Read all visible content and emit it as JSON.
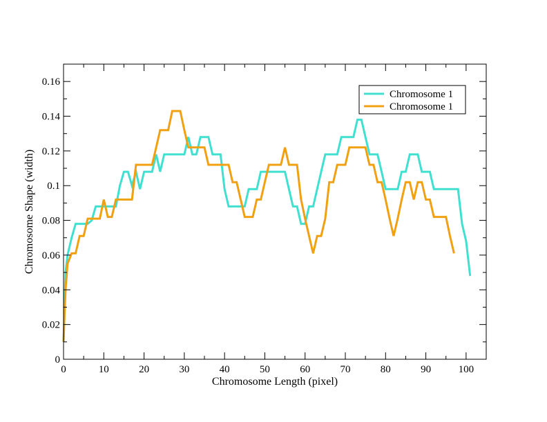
{
  "chart_data": {
    "type": "line",
    "title": "",
    "xlabel": "Chromosome Length (pixel)",
    "ylabel": "Chromosome Shape (width)",
    "xlim": [
      0,
      105
    ],
    "ylim": [
      0,
      0.17
    ],
    "x_ticks": [
      0,
      10,
      20,
      30,
      40,
      50,
      60,
      70,
      80,
      90,
      100
    ],
    "x_tick_labels": [
      "0",
      "10",
      "20",
      "30",
      "40",
      "50",
      "60",
      "70",
      "80",
      "90",
      "100"
    ],
    "y_ticks": [
      0,
      0.02,
      0.04,
      0.06,
      0.08,
      0.1,
      0.12,
      0.14,
      0.16
    ],
    "y_tick_labels": [
      "0",
      "0.02",
      "0.04",
      "0.06",
      "0.08",
      "0.1",
      "0.12",
      "0.14",
      "0.16"
    ],
    "grid": false,
    "legend_position": "top-right",
    "series": [
      {
        "name": "Chromosome 1",
        "color": "#40e0d0",
        "points": [
          [
            0,
            0.01
          ],
          [
            0.5,
            0.05
          ],
          [
            1,
            0.06
          ],
          [
            2,
            0.07
          ],
          [
            3,
            0.078
          ],
          [
            4,
            0.078
          ],
          [
            5,
            0.078
          ],
          [
            6,
            0.078
          ],
          [
            7,
            0.08
          ],
          [
            8,
            0.088
          ],
          [
            9,
            0.088
          ],
          [
            10,
            0.088
          ],
          [
            11,
            0.088
          ],
          [
            12,
            0.088
          ],
          [
            13,
            0.088
          ],
          [
            14,
            0.1
          ],
          [
            15,
            0.108
          ],
          [
            16,
            0.108
          ],
          [
            17,
            0.1
          ],
          [
            18,
            0.108
          ],
          [
            19,
            0.098
          ],
          [
            20,
            0.108
          ],
          [
            21,
            0.108
          ],
          [
            22,
            0.108
          ],
          [
            23,
            0.118
          ],
          [
            24,
            0.108
          ],
          [
            25,
            0.118
          ],
          [
            26,
            0.118
          ],
          [
            27,
            0.118
          ],
          [
            28,
            0.118
          ],
          [
            29,
            0.118
          ],
          [
            30,
            0.118
          ],
          [
            31,
            0.128
          ],
          [
            32,
            0.118
          ],
          [
            33,
            0.118
          ],
          [
            34,
            0.128
          ],
          [
            35,
            0.128
          ],
          [
            36,
            0.128
          ],
          [
            37,
            0.118
          ],
          [
            38,
            0.118
          ],
          [
            39,
            0.118
          ],
          [
            40,
            0.098
          ],
          [
            41,
            0.088
          ],
          [
            42,
            0.088
          ],
          [
            43,
            0.088
          ],
          [
            44,
            0.088
          ],
          [
            45,
            0.088
          ],
          [
            46,
            0.098
          ],
          [
            47,
            0.098
          ],
          [
            48,
            0.098
          ],
          [
            49,
            0.108
          ],
          [
            50,
            0.108
          ],
          [
            51,
            0.108
          ],
          [
            52,
            0.108
          ],
          [
            53,
            0.108
          ],
          [
            54,
            0.108
          ],
          [
            55,
            0.108
          ],
          [
            56,
            0.098
          ],
          [
            57,
            0.088
          ],
          [
            58,
            0.088
          ],
          [
            59,
            0.078
          ],
          [
            60,
            0.078
          ],
          [
            61,
            0.088
          ],
          [
            62,
            0.088
          ],
          [
            63,
            0.098
          ],
          [
            64,
            0.108
          ],
          [
            65,
            0.118
          ],
          [
            66,
            0.118
          ],
          [
            67,
            0.118
          ],
          [
            68,
            0.118
          ],
          [
            69,
            0.128
          ],
          [
            70,
            0.128
          ],
          [
            71,
            0.128
          ],
          [
            72,
            0.128
          ],
          [
            73,
            0.138
          ],
          [
            74,
            0.138
          ],
          [
            75,
            0.128
          ],
          [
            76,
            0.118
          ],
          [
            77,
            0.118
          ],
          [
            78,
            0.118
          ],
          [
            79,
            0.108
          ],
          [
            80,
            0.098
          ],
          [
            81,
            0.098
          ],
          [
            82,
            0.098
          ],
          [
            83,
            0.098
          ],
          [
            84,
            0.108
          ],
          [
            85,
            0.108
          ],
          [
            86,
            0.118
          ],
          [
            87,
            0.118
          ],
          [
            88,
            0.118
          ],
          [
            89,
            0.108
          ],
          [
            90,
            0.108
          ],
          [
            91,
            0.108
          ],
          [
            92,
            0.098
          ],
          [
            93,
            0.098
          ],
          [
            94,
            0.098
          ],
          [
            95,
            0.098
          ],
          [
            96,
            0.098
          ],
          [
            97,
            0.098
          ],
          [
            98,
            0.098
          ],
          [
            99,
            0.078
          ],
          [
            100,
            0.068
          ],
          [
            101,
            0.048
          ]
        ]
      },
      {
        "name": "Chromosome 1",
        "color": "#f0a010",
        "points": [
          [
            0,
            0.01
          ],
          [
            0.5,
            0.04
          ],
          [
            1,
            0.055
          ],
          [
            2,
            0.061
          ],
          [
            3,
            0.061
          ],
          [
            4,
            0.071
          ],
          [
            5,
            0.071
          ],
          [
            6,
            0.081
          ],
          [
            7,
            0.081
          ],
          [
            8,
            0.081
          ],
          [
            9,
            0.081
          ],
          [
            10,
            0.092
          ],
          [
            11,
            0.082
          ],
          [
            12,
            0.082
          ],
          [
            13,
            0.092
          ],
          [
            14,
            0.092
          ],
          [
            15,
            0.092
          ],
          [
            16,
            0.092
          ],
          [
            17,
            0.092
          ],
          [
            18,
            0.112
          ],
          [
            19,
            0.112
          ],
          [
            20,
            0.112
          ],
          [
            21,
            0.112
          ],
          [
            22,
            0.112
          ],
          [
            23,
            0.122
          ],
          [
            24,
            0.132
          ],
          [
            25,
            0.132
          ],
          [
            26,
            0.132
          ],
          [
            27,
            0.143
          ],
          [
            28,
            0.143
          ],
          [
            29,
            0.143
          ],
          [
            30,
            0.132
          ],
          [
            31,
            0.122
          ],
          [
            32,
            0.122
          ],
          [
            33,
            0.122
          ],
          [
            34,
            0.122
          ],
          [
            35,
            0.122
          ],
          [
            36,
            0.112
          ],
          [
            37,
            0.112
          ],
          [
            38,
            0.112
          ],
          [
            39,
            0.112
          ],
          [
            40,
            0.112
          ],
          [
            41,
            0.112
          ],
          [
            42,
            0.102
          ],
          [
            43,
            0.102
          ],
          [
            44,
            0.092
          ],
          [
            45,
            0.082
          ],
          [
            46,
            0.082
          ],
          [
            47,
            0.082
          ],
          [
            48,
            0.092
          ],
          [
            49,
            0.092
          ],
          [
            50,
            0.102
          ],
          [
            51,
            0.112
          ],
          [
            52,
            0.112
          ],
          [
            53,
            0.112
          ],
          [
            54,
            0.112
          ],
          [
            55,
            0.122
          ],
          [
            56,
            0.112
          ],
          [
            57,
            0.112
          ],
          [
            58,
            0.112
          ],
          [
            59,
            0.092
          ],
          [
            60,
            0.081
          ],
          [
            61,
            0.071
          ],
          [
            62,
            0.061
          ],
          [
            63,
            0.071
          ],
          [
            64,
            0.071
          ],
          [
            65,
            0.081
          ],
          [
            66,
            0.102
          ],
          [
            67,
            0.102
          ],
          [
            68,
            0.112
          ],
          [
            69,
            0.112
          ],
          [
            70,
            0.112
          ],
          [
            71,
            0.122
          ],
          [
            72,
            0.122
          ],
          [
            73,
            0.122
          ],
          [
            74,
            0.122
          ],
          [
            75,
            0.122
          ],
          [
            76,
            0.112
          ],
          [
            77,
            0.112
          ],
          [
            78,
            0.102
          ],
          [
            79,
            0.102
          ],
          [
            80,
            0.092
          ],
          [
            81,
            0.081
          ],
          [
            82,
            0.071
          ],
          [
            83,
            0.081
          ],
          [
            84,
            0.092
          ],
          [
            85,
            0.102
          ],
          [
            86,
            0.102
          ],
          [
            87,
            0.092
          ],
          [
            88,
            0.102
          ],
          [
            89,
            0.102
          ],
          [
            90,
            0.092
          ],
          [
            91,
            0.092
          ],
          [
            92,
            0.082
          ],
          [
            93,
            0.082
          ],
          [
            94,
            0.082
          ],
          [
            95,
            0.082
          ],
          [
            96,
            0.071
          ],
          [
            97,
            0.061
          ]
        ]
      }
    ]
  }
}
